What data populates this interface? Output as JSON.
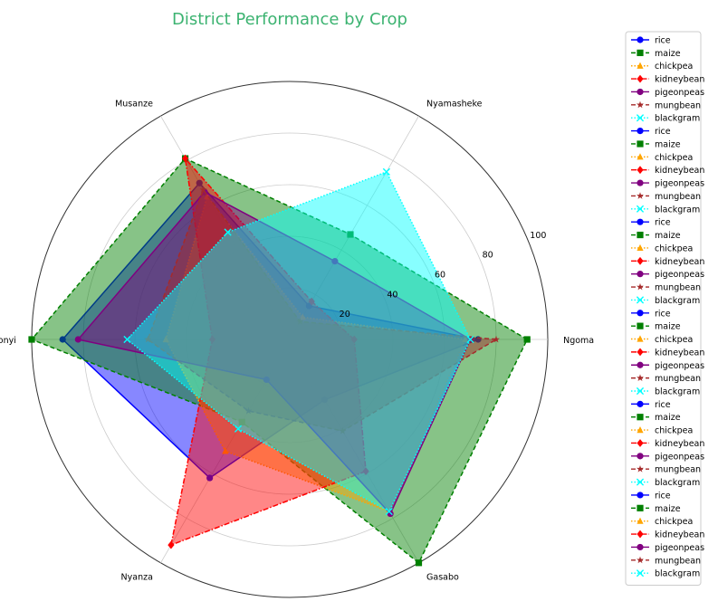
{
  "chart_data": {
    "type": "radar",
    "title": "District Performance by Crop",
    "title_color": "#3cb371",
    "axes": [
      "Ngoma",
      "Nyamasheke",
      "Musanze",
      "Kamonyi",
      "Nyanza",
      "Gasabo"
    ],
    "r_ticks": [
      "20",
      "40",
      "60",
      "80",
      "100"
    ],
    "r_range": [
      0,
      100
    ],
    "grid": true,
    "legend_position": "outside-right",
    "series": [
      {
        "name": "rice",
        "color": "#0000ff",
        "marker": "circle",
        "dash": "solid",
        "values": [
          73,
          15,
          70,
          88,
          62,
          27
        ]
      },
      {
        "name": "maize",
        "color": "#008000",
        "marker": "square",
        "dash": "dashed",
        "values": [
          92,
          47,
          81,
          100,
          37,
          100
        ]
      },
      {
        "name": "chickpea",
        "color": "#ffa500",
        "marker": "triangle",
        "dash": "dotted",
        "values": [
          68,
          10,
          64,
          48,
          50,
          77
        ]
      },
      {
        "name": "kidneybean",
        "color": "#ff0000",
        "marker": "diamond",
        "dash": "dashdot",
        "values": [
          25,
          17,
          81,
          30,
          92,
          59
        ]
      },
      {
        "name": "pigeonpeas",
        "color": "#800080",
        "marker": "circle",
        "dash": "solid",
        "values": [
          70,
          35,
          66,
          82,
          18,
          78
        ]
      },
      {
        "name": "mungbean",
        "color": "#a52a2a",
        "marker": "star",
        "dash": "dashed",
        "values": [
          80,
          8,
          67,
          55,
          32,
          41
        ]
      },
      {
        "name": "blackgram",
        "color": "#00ffff",
        "marker": "x",
        "dash": "dotted",
        "values": [
          70,
          75,
          48,
          63,
          40,
          77
        ]
      }
    ],
    "legend_entries": [
      "rice",
      "maize",
      "chickpea",
      "kidneybean",
      "pigeonpeas",
      "mungbean",
      "blackgram",
      "rice",
      "maize",
      "chickpea",
      "kidneybean",
      "pigeonpeas",
      "mungbean",
      "blackgram",
      "rice",
      "maize",
      "chickpea",
      "kidneybean",
      "pigeonpeas",
      "mungbean",
      "blackgram",
      "rice",
      "maize",
      "chickpea",
      "kidneybean",
      "pigeonpeas",
      "mungbean",
      "blackgram",
      "rice",
      "maize",
      "chickpea",
      "kidneybean",
      "pigeonpeas",
      "mungbean",
      "blackgram",
      "rice",
      "maize",
      "chickpea",
      "kidneybean",
      "pigeonpeas",
      "mungbean",
      "blackgram"
    ]
  }
}
